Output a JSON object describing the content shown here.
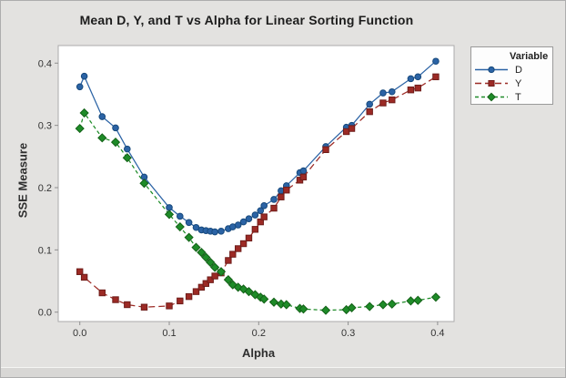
{
  "window": {
    "background": "#e3e2e0",
    "border_color": "#adadad"
  },
  "chart_data": {
    "type": "line",
    "title": "Mean D, Y, and T vs Alpha for Linear Sorting Function",
    "xlabel": "Alpha",
    "ylabel": "SSE Measure",
    "xlim": [
      -0.024,
      0.418
    ],
    "ylim": [
      -0.015,
      0.428
    ],
    "grid": false,
    "plot_bg": "#ffffff",
    "frame_color": "#ababab",
    "tick_color": "#8f8f8f",
    "text_color": "#333333",
    "xticks": {
      "values": [
        0.0,
        0.1,
        0.2,
        0.3,
        0.4
      ],
      "labels": [
        "0.0",
        "0.1",
        "0.2",
        "0.3",
        "0.4"
      ]
    },
    "yticks": {
      "values": [
        0.0,
        0.1,
        0.2,
        0.3,
        0.4
      ],
      "labels": [
        "0.0",
        "0.1",
        "0.2",
        "0.3",
        "0.4"
      ]
    },
    "legend": {
      "title": "Variable",
      "position": "top-right"
    },
    "x": [
      0.0,
      0.005,
      0.025,
      0.04,
      0.053,
      0.072,
      0.1,
      0.112,
      0.122,
      0.13,
      0.136,
      0.141,
      0.146,
      0.151,
      0.158,
      0.166,
      0.171,
      0.177,
      0.183,
      0.189,
      0.196,
      0.202,
      0.206,
      0.217,
      0.225,
      0.231,
      0.246,
      0.25,
      0.275,
      0.298,
      0.304,
      0.324,
      0.339,
      0.349,
      0.37,
      0.378,
      0.398
    ],
    "series": [
      {
        "name": "D",
        "marker": "circle",
        "line": "solid",
        "dash": "none",
        "color": "#2b63a5",
        "edge": "#17497c",
        "values": [
          0.362,
          0.379,
          0.314,
          0.296,
          0.262,
          0.217,
          0.168,
          0.154,
          0.144,
          0.136,
          0.132,
          0.131,
          0.13,
          0.129,
          0.13,
          0.134,
          0.137,
          0.14,
          0.145,
          0.15,
          0.156,
          0.163,
          0.171,
          0.181,
          0.195,
          0.203,
          0.224,
          0.227,
          0.266,
          0.297,
          0.3,
          0.334,
          0.352,
          0.354,
          0.375,
          0.378,
          0.403
        ]
      },
      {
        "name": "Y",
        "marker": "square",
        "line": "dashed",
        "dash": "7 4",
        "color": "#9c2a25",
        "edge": "#6e1d1a",
        "values": [
          0.065,
          0.056,
          0.031,
          0.02,
          0.012,
          0.008,
          0.01,
          0.018,
          0.025,
          0.033,
          0.04,
          0.046,
          0.052,
          0.058,
          0.063,
          0.083,
          0.093,
          0.102,
          0.11,
          0.119,
          0.133,
          0.145,
          0.153,
          0.167,
          0.185,
          0.196,
          0.212,
          0.217,
          0.261,
          0.29,
          0.295,
          0.322,
          0.336,
          0.341,
          0.357,
          0.36,
          0.378
        ]
      },
      {
        "name": "T",
        "marker": "diamond",
        "line": "dashed",
        "dash": "4 3",
        "color": "#1e8b28",
        "edge": "#136117",
        "values": [
          0.295,
          0.32,
          0.28,
          0.273,
          0.248,
          0.207,
          0.157,
          0.137,
          0.12,
          0.104,
          0.096,
          0.088,
          0.08,
          0.072,
          0.065,
          0.052,
          0.044,
          0.04,
          0.037,
          0.033,
          0.028,
          0.024,
          0.021,
          0.016,
          0.013,
          0.012,
          0.006,
          0.005,
          0.003,
          0.004,
          0.007,
          0.009,
          0.012,
          0.013,
          0.018,
          0.019,
          0.024
        ]
      }
    ]
  }
}
